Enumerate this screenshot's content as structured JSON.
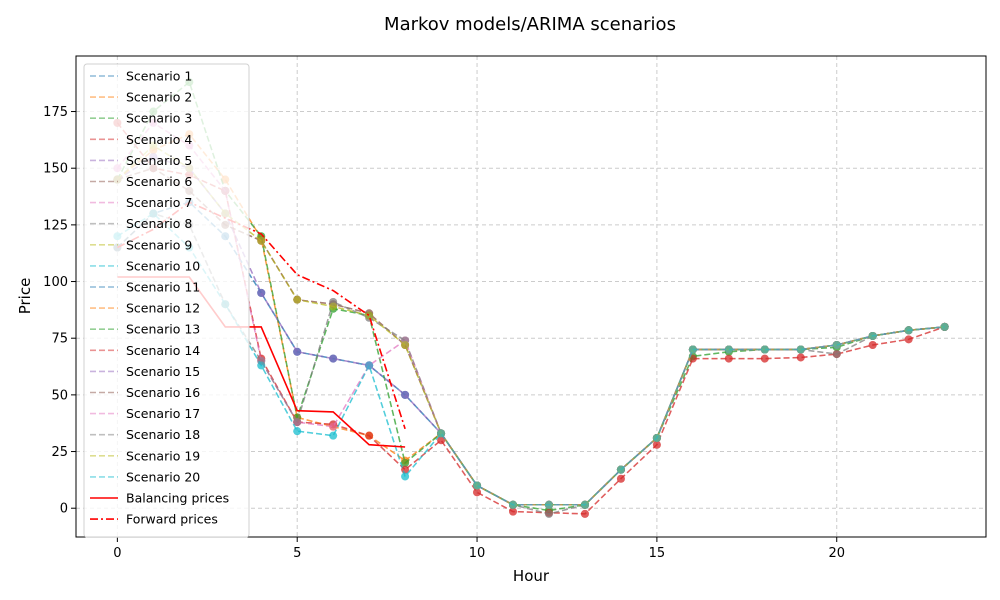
{
  "chart_data": {
    "type": "line",
    "title": "Markov models/ARIMA scenarios",
    "xlabel": "Hour",
    "ylabel": "Price",
    "xlim": [
      -1.15,
      24.15
    ],
    "ylim": [
      -12.7,
      199.5
    ],
    "xticks": [
      0,
      5,
      10,
      15,
      20
    ],
    "yticks": [
      0,
      25,
      50,
      75,
      100,
      125,
      150,
      175
    ],
    "grid": true,
    "legend_position": "top-left",
    "x": [
      0,
      1,
      2,
      3,
      4,
      5,
      6,
      7,
      8,
      9,
      10,
      11,
      12,
      13,
      14,
      15,
      16,
      17,
      18,
      19,
      20,
      21,
      22,
      23
    ],
    "series": [
      {
        "name": "Scenario 1",
        "color": "#1f77b4",
        "style": "dashed",
        "values": [
          115,
          130,
          135,
          120,
          95,
          69,
          66,
          63,
          50,
          33,
          10,
          1.5,
          1.5,
          1.5,
          17,
          31,
          70,
          70,
          70,
          70,
          72,
          76,
          78.5,
          80
        ]
      },
      {
        "name": "Scenario 2",
        "color": "#ff7f0e",
        "style": "dashed",
        "values": [
          145,
          158,
          165,
          145,
          119,
          40,
          36,
          32,
          21,
          33,
          10,
          1.5,
          1.5,
          1.5,
          17,
          31,
          70,
          70,
          70,
          70,
          72,
          76,
          78.5,
          80
        ]
      },
      {
        "name": "Scenario 3",
        "color": "#2ca02c",
        "style": "dashed",
        "values": [
          145,
          175,
          188,
          140,
          120,
          40,
          88,
          85,
          20,
          33,
          10,
          1.5,
          -1,
          1.5,
          17,
          31,
          67,
          69,
          70,
          70,
          71,
          76,
          78.5,
          80
        ]
      },
      {
        "name": "Scenario 4",
        "color": "#d62728",
        "style": "dashed",
        "values": [
          170,
          150,
          147,
          140,
          66,
          38,
          37,
          32,
          17,
          30,
          7,
          -1.5,
          -2,
          -2.5,
          13,
          28,
          66,
          66,
          66,
          66.5,
          68,
          72,
          74.5,
          80
        ]
      },
      {
        "name": "Scenario 5",
        "color": "#9467bd",
        "style": "dashed",
        "values": [
          145,
          155,
          150,
          130,
          95,
          69,
          66,
          63,
          50,
          33,
          10,
          1.5,
          1.5,
          1.5,
          17,
          31,
          70,
          70,
          70,
          70,
          72,
          76,
          78.5,
          80
        ]
      },
      {
        "name": "Scenario 6",
        "color": "#8c564b",
        "style": "dashed",
        "values": [
          145,
          150,
          140,
          125,
          118,
          92,
          90,
          86,
          72,
          33,
          10,
          1.5,
          1.5,
          1.5,
          17,
          31,
          70,
          70,
          70,
          70,
          72,
          76,
          78.5,
          80
        ]
      },
      {
        "name": "Scenario 7",
        "color": "#e377c2",
        "style": "dashed",
        "values": [
          150,
          170,
          160,
          140,
          65,
          38,
          36,
          63,
          74,
          33,
          10,
          1.5,
          1.5,
          1.5,
          17,
          31,
          70,
          70,
          70,
          70,
          72,
          76,
          78.5,
          80
        ]
      },
      {
        "name": "Scenario 8",
        "color": "#7f7f7f",
        "style": "dashed",
        "values": [
          115,
          130,
          125,
          90,
          65,
          38,
          91,
          84,
          74,
          33,
          10,
          1.5,
          -2.5,
          1.5,
          17,
          31,
          70,
          70,
          70,
          70,
          68,
          76,
          78.5,
          80
        ]
      },
      {
        "name": "Scenario 9",
        "color": "#bcbd22",
        "style": "dashed",
        "values": [
          145,
          160,
          150,
          130,
          118,
          92,
          89,
          85,
          72,
          33,
          10,
          1.5,
          1.5,
          1.5,
          17,
          31,
          70,
          70,
          70,
          70,
          72,
          76,
          78.5,
          80
        ]
      },
      {
        "name": "Scenario 10",
        "color": "#17becf",
        "style": "dashed",
        "values": [
          120,
          130,
          115,
          90,
          63,
          34,
          32,
          63,
          14,
          33,
          10,
          1.5,
          1.5,
          1.5,
          17,
          31,
          70,
          70,
          70,
          70,
          72,
          76,
          78.5,
          80
        ]
      },
      {
        "name": "Scenario 11",
        "color": "#1f77b4",
        "style": "dashed",
        "values": [
          115,
          130,
          135,
          120,
          95,
          69,
          66,
          63,
          50,
          33,
          10,
          1.5,
          1.5,
          1.5,
          17,
          31,
          70,
          70,
          70,
          70,
          72,
          76,
          78.5,
          80
        ]
      },
      {
        "name": "Scenario 12",
        "color": "#ff7f0e",
        "style": "dashed",
        "values": [
          145,
          158,
          165,
          145,
          119,
          40,
          36,
          32,
          21,
          33,
          10,
          1.5,
          1.5,
          1.5,
          17,
          31,
          70,
          70,
          70,
          70,
          72,
          76,
          78.5,
          80
        ]
      },
      {
        "name": "Scenario 13",
        "color": "#2ca02c",
        "style": "dashed",
        "values": [
          145,
          175,
          188,
          140,
          120,
          40,
          88,
          85,
          20,
          33,
          10,
          1.5,
          -1,
          1.5,
          17,
          31,
          67,
          69,
          70,
          70,
          71,
          76,
          78.5,
          80
        ]
      },
      {
        "name": "Scenario 14",
        "color": "#d62728",
        "style": "dashed",
        "values": [
          170,
          150,
          147,
          140,
          66,
          38,
          37,
          32,
          17,
          30,
          7,
          -1.5,
          -2,
          -2.5,
          13,
          28,
          66,
          66,
          66,
          66.5,
          68,
          72,
          74.5,
          80
        ]
      },
      {
        "name": "Scenario 15",
        "color": "#9467bd",
        "style": "dashed",
        "values": [
          145,
          155,
          150,
          130,
          95,
          69,
          66,
          63,
          50,
          33,
          10,
          1.5,
          1.5,
          1.5,
          17,
          31,
          70,
          70,
          70,
          70,
          72,
          76,
          78.5,
          80
        ]
      },
      {
        "name": "Scenario 16",
        "color": "#8c564b",
        "style": "dashed",
        "values": [
          145,
          150,
          140,
          125,
          118,
          92,
          90,
          86,
          72,
          33,
          10,
          1.5,
          1.5,
          1.5,
          17,
          31,
          70,
          70,
          70,
          70,
          72,
          76,
          78.5,
          80
        ]
      },
      {
        "name": "Scenario 17",
        "color": "#e377c2",
        "style": "dashed",
        "values": [
          150,
          170,
          160,
          140,
          65,
          38,
          36,
          63,
          74,
          33,
          10,
          1.5,
          1.5,
          1.5,
          17,
          31,
          70,
          70,
          70,
          70,
          72,
          76,
          78.5,
          80
        ]
      },
      {
        "name": "Scenario 18",
        "color": "#7f7f7f",
        "style": "dashed",
        "values": [
          115,
          130,
          125,
          90,
          65,
          38,
          91,
          84,
          74,
          33,
          10,
          1.5,
          -2.5,
          1.5,
          17,
          31,
          70,
          70,
          70,
          70,
          68,
          76,
          78.5,
          80
        ]
      },
      {
        "name": "Scenario 19",
        "color": "#bcbd22",
        "style": "dashed",
        "values": [
          145,
          160,
          150,
          130,
          118,
          92,
          89,
          85,
          72,
          33,
          10,
          1.5,
          1.5,
          1.5,
          17,
          31,
          70,
          70,
          70,
          70,
          72,
          76,
          78.5,
          80
        ]
      },
      {
        "name": "Scenario 20",
        "color": "#17becf",
        "style": "dashed",
        "values": [
          120,
          130,
          115,
          90,
          63,
          34,
          32,
          63,
          14,
          33,
          10,
          1.5,
          1.5,
          1.5,
          17,
          31,
          70,
          70,
          70,
          70,
          72,
          76,
          78.5,
          80
        ]
      },
      {
        "name": "Balancing prices",
        "color": "#ff0000",
        "style": "solid",
        "x": [
          0,
          1,
          2,
          3,
          4,
          5,
          6,
          7,
          8
        ],
        "values": [
          102,
          102,
          102,
          80,
          80,
          43,
          42.5,
          28,
          27
        ]
      },
      {
        "name": "Forward prices",
        "color": "#ff0000",
        "style": "dashdot",
        "x": [
          0,
          1,
          2,
          3,
          4,
          5,
          6,
          7,
          8
        ],
        "values": [
          115,
          123,
          135,
          128,
          121,
          103,
          96,
          85,
          35
        ]
      }
    ]
  }
}
